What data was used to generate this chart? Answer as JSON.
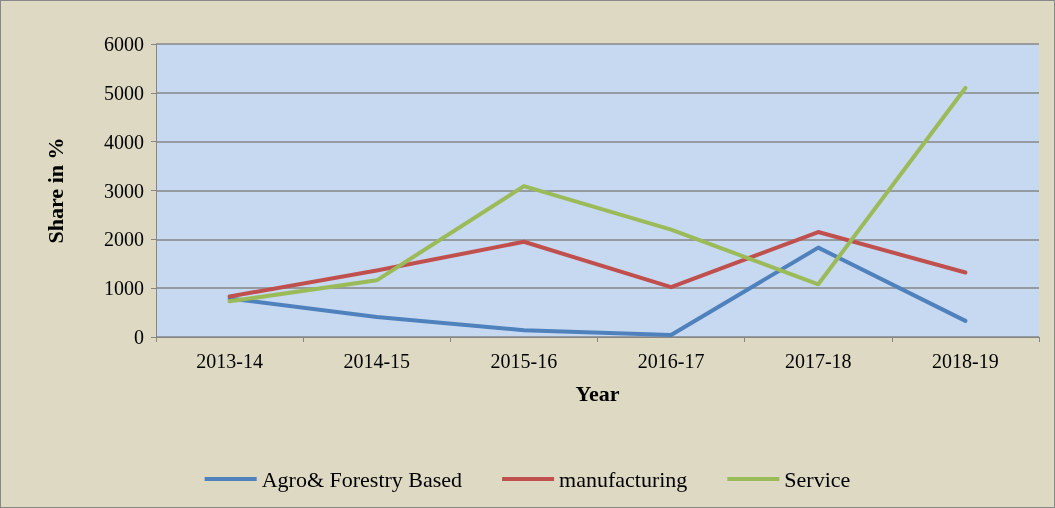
{
  "chart_data": {
    "type": "line",
    "xlabel": "Year",
    "ylabel": "Share in %",
    "categories": [
      "2013-14",
      "2014-15",
      "2015-16",
      "2016-17",
      "2017-18",
      "2018-19"
    ],
    "series": [
      {
        "name": "Agro& Forestry Based",
        "color": "#4f81bd",
        "values": [
          790,
          410,
          140,
          40,
          1830,
          330
        ]
      },
      {
        "name": "manufacturing",
        "color": "#c0504d",
        "values": [
          830,
          1360,
          1950,
          1020,
          2150,
          1320
        ]
      },
      {
        "name": "Service",
        "color": "#9bbb59",
        "values": [
          730,
          1160,
          3090,
          2200,
          1080,
          5100
        ]
      }
    ],
    "ylim": [
      0,
      6000
    ],
    "yticks": [
      0,
      1000,
      2000,
      3000,
      4000,
      5000,
      6000
    ],
    "grid": "y",
    "legend": "bottom",
    "marker": "none",
    "line_style": "solid"
  }
}
